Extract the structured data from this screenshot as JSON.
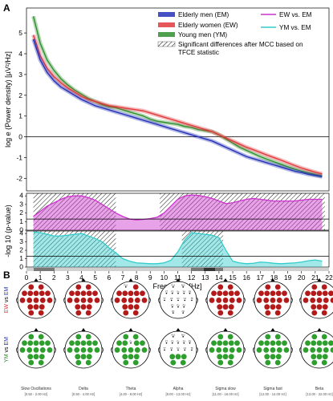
{
  "panel_a_letter": "A",
  "panel_b_letter": "B",
  "colors": {
    "em": "#2431b8",
    "ew": "#e0393c",
    "ym": "#2f8f2f",
    "ew_vs_em": "#cc33cc",
    "ym_vs_em": "#33cccc",
    "dot_red": "#b31a1a",
    "dot_green": "#2e9e2e"
  },
  "chart_data": [
    {
      "type": "line",
      "ylabel": "log e (Power density) [µV²/Hz]",
      "ylim": [
        -2.6,
        6.2
      ],
      "xlim": [
        0,
        22
      ],
      "y_ticks": [
        "-2",
        "-1",
        "0",
        "1",
        "2",
        "3",
        "4",
        "5"
      ],
      "legend": {
        "entries": [
          "Elderly men (EM)",
          "Elderly women (EW)",
          "Young men (YM)"
        ],
        "hatch_label": "Significant differences after MCC based on TFCE statistic",
        "contrast_entries": [
          "EW vs. EM",
          "YM vs. EM"
        ]
      },
      "x": [
        0.5,
        1,
        1.5,
        2,
        2.5,
        3,
        3.5,
        4,
        4.5,
        5,
        5.5,
        6,
        6.5,
        7,
        7.5,
        8,
        8.5,
        9,
        9.5,
        10,
        10.5,
        11,
        11.5,
        12,
        12.5,
        13,
        13.5,
        14,
        14.5,
        15,
        15.5,
        16,
        16.5,
        17,
        17.5,
        18,
        18.5,
        19,
        19.5,
        20,
        20.5,
        21,
        21.5
      ],
      "series": [
        {
          "name": "Elderly men (EM)",
          "values": [
            4.7,
            3.7,
            3.1,
            2.7,
            2.4,
            2.2,
            2.0,
            1.8,
            1.65,
            1.5,
            1.4,
            1.3,
            1.2,
            1.1,
            1.0,
            0.9,
            0.8,
            0.7,
            0.6,
            0.5,
            0.4,
            0.3,
            0.2,
            0.1,
            0.0,
            -0.1,
            -0.2,
            -0.35,
            -0.5,
            -0.65,
            -0.8,
            -0.95,
            -1.05,
            -1.15,
            -1.25,
            -1.35,
            -1.45,
            -1.55,
            -1.65,
            -1.72,
            -1.8,
            -1.86,
            -1.92
          ]
        },
        {
          "name": "Elderly women (EW)",
          "values": [
            4.9,
            3.9,
            3.3,
            2.9,
            2.6,
            2.35,
            2.15,
            1.95,
            1.8,
            1.7,
            1.6,
            1.5,
            1.45,
            1.4,
            1.35,
            1.3,
            1.25,
            1.15,
            1.05,
            0.95,
            0.85,
            0.75,
            0.65,
            0.55,
            0.45,
            0.35,
            0.25,
            0.1,
            -0.05,
            -0.2,
            -0.35,
            -0.5,
            -0.62,
            -0.75,
            -0.88,
            -1.0,
            -1.12,
            -1.25,
            -1.38,
            -1.5,
            -1.6,
            -1.7,
            -1.78
          ]
        },
        {
          "name": "Young men (YM)",
          "values": [
            5.8,
            4.5,
            3.7,
            3.2,
            2.8,
            2.5,
            2.25,
            2.05,
            1.85,
            1.7,
            1.55,
            1.45,
            1.4,
            1.3,
            1.2,
            1.1,
            1.0,
            0.85,
            0.75,
            0.7,
            0.65,
            0.6,
            0.5,
            0.45,
            0.35,
            0.3,
            0.25,
            0.1,
            -0.1,
            -0.3,
            -0.5,
            -0.65,
            -0.8,
            -0.95,
            -1.08,
            -1.2,
            -1.32,
            -1.44,
            -1.55,
            -1.65,
            -1.74,
            -1.82,
            -1.88
          ]
        }
      ]
    },
    {
      "type": "area",
      "name": "EW vs. EM",
      "ylim": [
        0,
        4.3
      ],
      "y_ticks": [
        "0",
        "1",
        "2",
        "3",
        "4"
      ],
      "threshold": 1.3,
      "x": [
        0.5,
        1,
        1.5,
        2,
        2.5,
        3,
        3.5,
        4,
        4.5,
        5,
        5.5,
        6,
        6.5,
        7,
        7.5,
        8,
        8.5,
        9,
        9.5,
        10,
        10.5,
        11,
        11.5,
        12,
        12.5,
        13,
        13.5,
        14,
        14.5,
        15,
        15.5,
        16,
        16.5,
        17,
        17.5,
        18,
        18.5,
        19,
        19.5,
        20,
        20.5,
        21,
        21.5
      ],
      "values": [
        1.6,
        2.2,
        2.8,
        3.2,
        3.6,
        3.9,
        4.0,
        4.0,
        3.8,
        3.5,
        3.0,
        2.5,
        2.0,
        1.6,
        1.3,
        1.2,
        1.25,
        1.35,
        1.5,
        2.0,
        2.8,
        3.6,
        4.0,
        4.1,
        4.05,
        3.9,
        3.7,
        3.4,
        3.1,
        3.2,
        3.4,
        3.6,
        3.7,
        3.6,
        3.5,
        3.4,
        3.4,
        3.4,
        3.4,
        3.5,
        3.6,
        3.6,
        3.6
      ],
      "significant_ranges": [
        [
          0.5,
          6.5
        ],
        [
          9.7,
          21.7
        ]
      ]
    },
    {
      "type": "area",
      "name": "YM vs. EM",
      "ylim": [
        0,
        4.3
      ],
      "y_ticks": [
        "0",
        "1",
        "2",
        "3",
        "4"
      ],
      "threshold": 1.3,
      "x": [
        0.5,
        1,
        1.5,
        2,
        2.5,
        3,
        3.5,
        4,
        4.5,
        5,
        5.5,
        6,
        6.5,
        7,
        7.5,
        8,
        8.5,
        9,
        9.5,
        10,
        10.5,
        11,
        11.5,
        12,
        12.5,
        13,
        13.5,
        14,
        14.5,
        15,
        15.5,
        16,
        16.5,
        17,
        17.5,
        18,
        18.5,
        19,
        19.5,
        20,
        20.5,
        21,
        21.5
      ],
      "values": [
        4.2,
        4.1,
        3.9,
        3.7,
        3.7,
        3.8,
        3.9,
        4.0,
        3.7,
        3.4,
        3.0,
        2.3,
        1.7,
        1.0,
        0.7,
        0.5,
        0.45,
        0.4,
        0.4,
        0.5,
        0.8,
        1.8,
        3.2,
        4.1,
        4.0,
        3.9,
        3.8,
        3.5,
        2.0,
        0.7,
        0.5,
        0.4,
        0.45,
        0.6,
        0.55,
        0.45,
        0.4,
        0.45,
        0.5,
        0.6,
        0.75,
        0.85,
        0.7
      ],
      "significant_ranges": [
        [
          0.5,
          6.5
        ],
        [
          11.3,
          14.3
        ]
      ]
    }
  ],
  "x_axis": {
    "label": "Frequency [Hz]",
    "ticks": [
      "0",
      "1",
      "2",
      "3",
      "4",
      "5",
      "6",
      "7",
      "8",
      "9",
      "10",
      "11",
      "12",
      "13",
      "14",
      "15",
      "16",
      "17",
      "18",
      "19",
      "20",
      "21",
      "22"
    ]
  },
  "pvalue_axis_label": "-log 10 (p-value)",
  "topo": {
    "row_labels": [
      {
        "a": "EW",
        "vs": "vs",
        "b": "EM"
      },
      {
        "a": "YM",
        "vs": "vs",
        "b": "EM"
      }
    ],
    "bands": [
      {
        "name": "Slow Oscillations",
        "range": "[0.50 - 2.00 Hz]"
      },
      {
        "name": "Delta",
        "range": "[0.50 - 4.00 Hz]"
      },
      {
        "name": "Theta",
        "range": "[4.00 - 8.00 Hz]"
      },
      {
        "name": "Alpha",
        "range": "[8.00 - 13.00 Hz]"
      },
      {
        "name": "Sigma slow",
        "range": "[11.00 - 16.00 Hz]"
      },
      {
        "name": "Sigma fast",
        "range": "[12.00 - 14.00 Hz]"
      },
      {
        "name": "Beta",
        "range": "[13.00 - 22.00 Hz]"
      }
    ],
    "electrode_labels": [
      "Fp1",
      "Fp2",
      "F7",
      "F3",
      "Fz",
      "F4",
      "F8",
      "C3",
      "Cz",
      "C4",
      "T7",
      "T8",
      "P3",
      "Pz",
      "P4",
      "O1",
      "O2"
    ]
  }
}
